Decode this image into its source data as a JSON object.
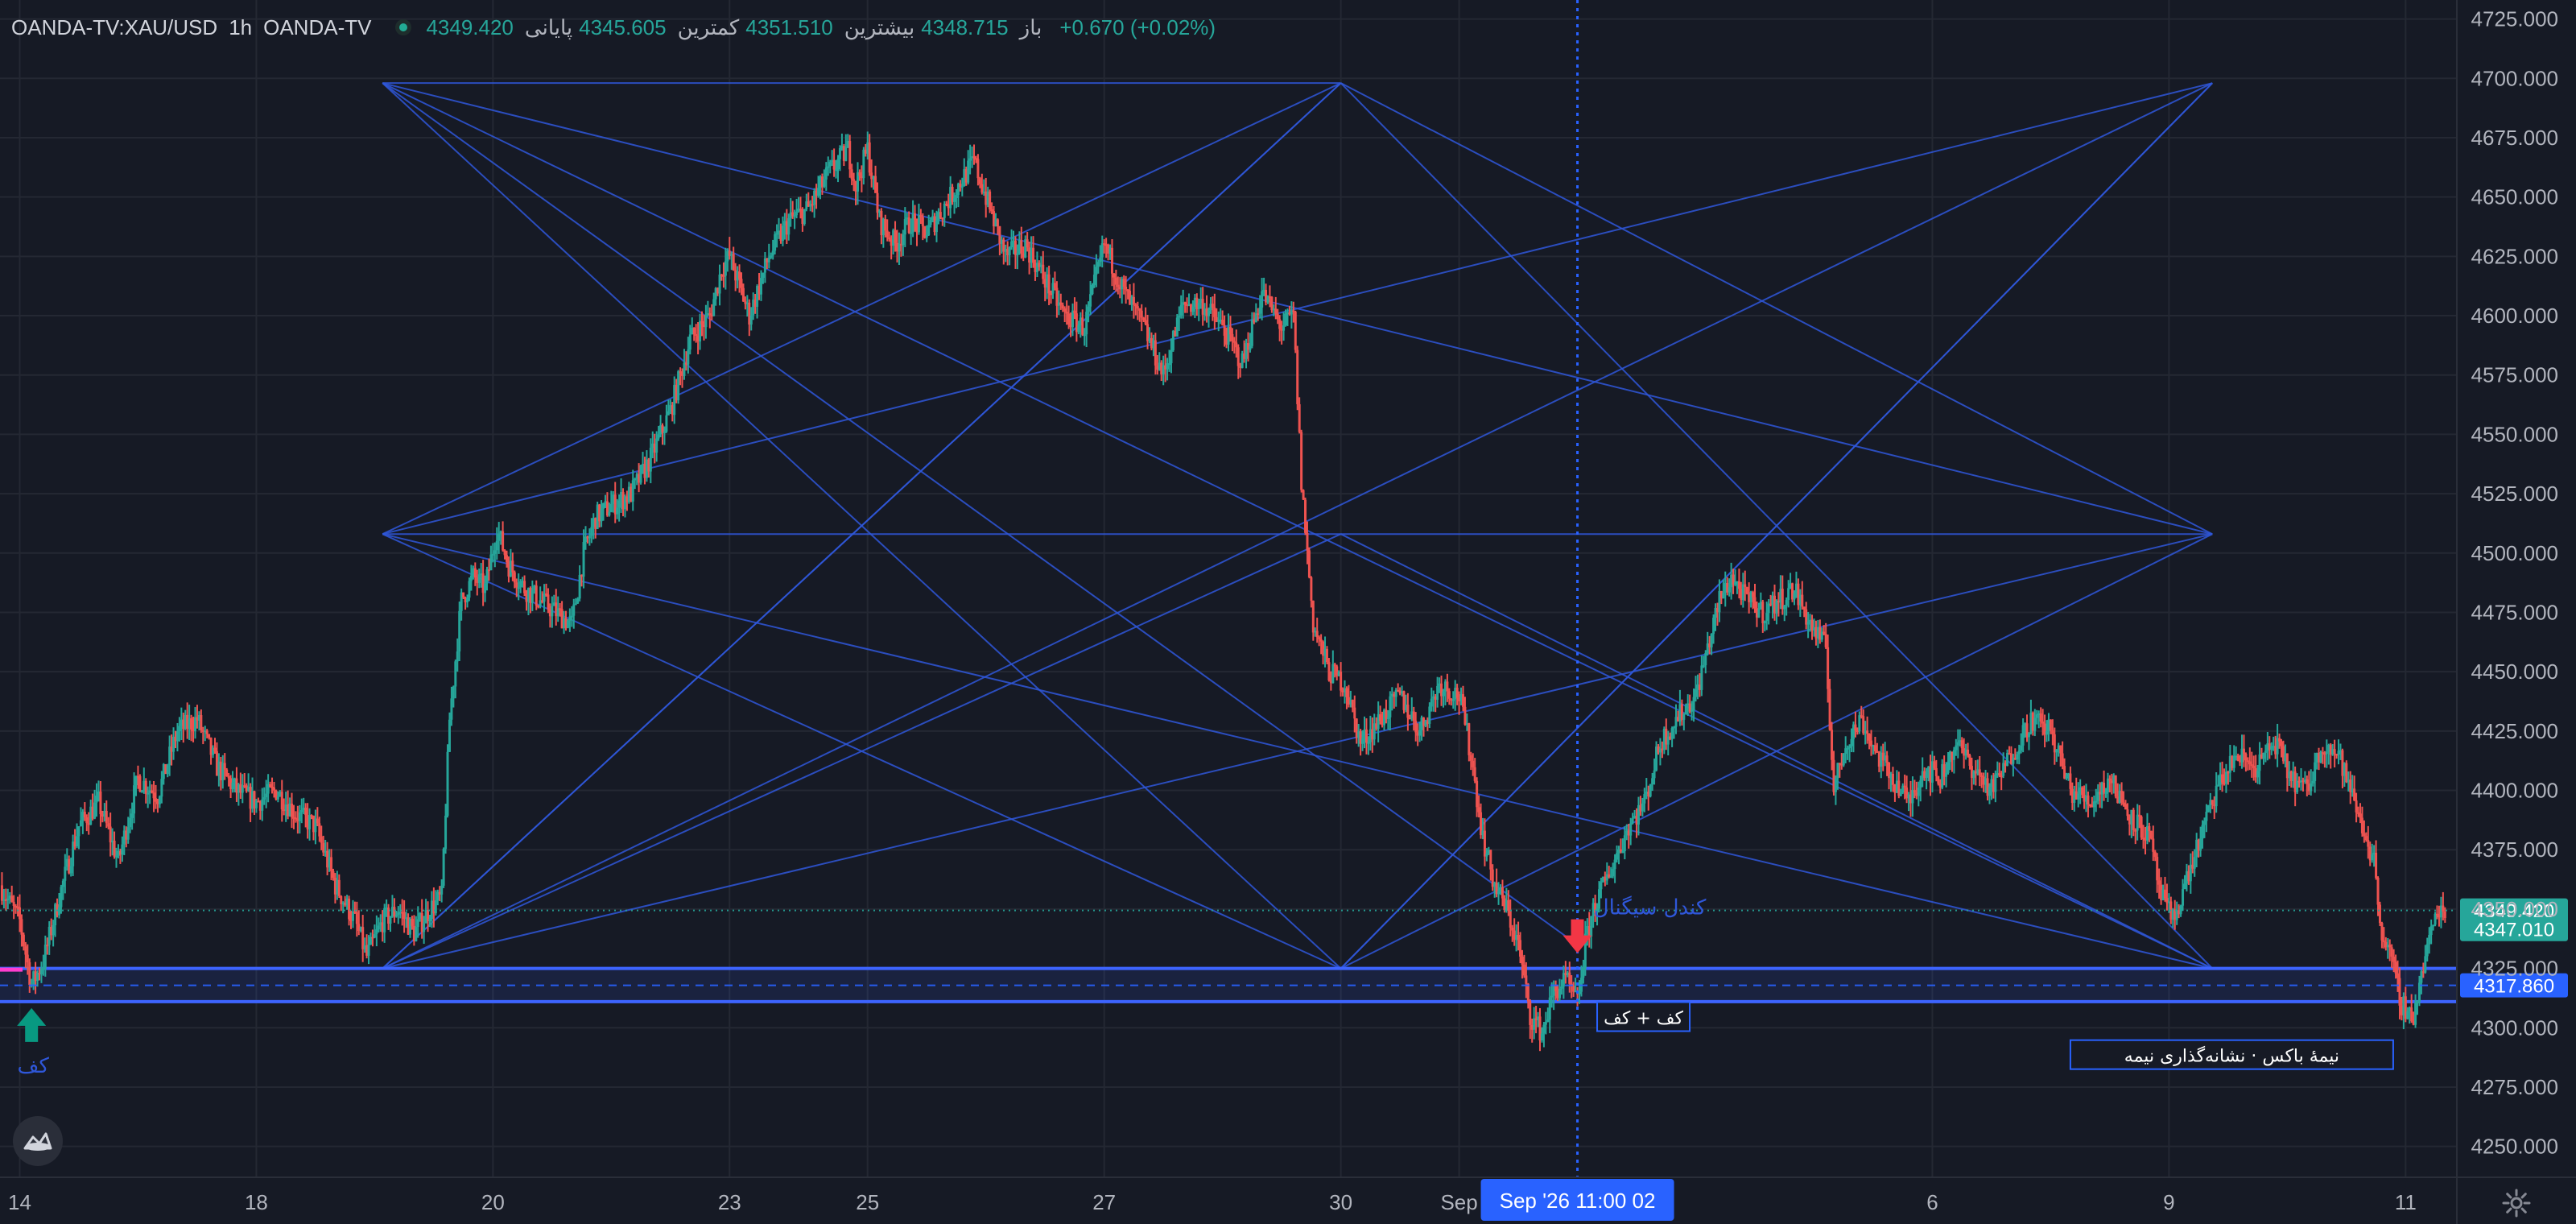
{
  "header": {
    "symbol": "OANDA-TV:XAU/USD",
    "interval": "1h",
    "source": "OANDA-TV",
    "open_label": "باز",
    "open": "4348.715",
    "high_label": "بیشترین",
    "high": "4351.510",
    "low_label": "کمترین",
    "low": "4345.605",
    "close_label": "پایانی",
    "close": "4349.420",
    "change": "+0.670 (+0.02%)"
  },
  "colors": {
    "background": "#161a25",
    "grid": "#242833",
    "up": "#26a69a",
    "down": "#ef5350",
    "pattern_lines": "#2f57d9",
    "zone": "#3d64ff",
    "accent_pink": "#ff3dcf",
    "axis_text": "#b2b5be"
  },
  "chart_data": {
    "type": "candlestick",
    "symbol": "XAU/USD",
    "interval": "1h",
    "ylim": [
      4237,
      4733
    ],
    "y_ticks": [
      4250,
      4275,
      4300,
      4325,
      4350,
      4375,
      4400,
      4425,
      4450,
      4475,
      4500,
      4525,
      4550,
      4575,
      4600,
      4625,
      4650,
      4675,
      4700,
      4725
    ],
    "y_tick_labels": [
      "4250.000",
      "4275.000",
      "4300.000",
      "4325.000",
      "4350.000",
      "4375.000",
      "4400.000",
      "4425.000",
      "4450.000",
      "4475.000",
      "4500.000",
      "4525.000",
      "4550.000",
      "4575.000",
      "4600.000",
      "4625.000",
      "4650.000",
      "4675.000",
      "4700.000",
      "4725.000"
    ],
    "x_ticks": [
      {
        "label": "14",
        "x": 0
      },
      {
        "label": "18",
        "x": 60
      },
      {
        "label": "20",
        "x": 120
      },
      {
        "label": "23",
        "x": 180
      },
      {
        "label": "25",
        "x": 215
      },
      {
        "label": "27",
        "x": 275
      },
      {
        "label": "30",
        "x": 335
      },
      {
        "label": "Sep",
        "x": 365
      },
      {
        "label": "6",
        "x": 485
      },
      {
        "label": "9",
        "x": 545
      },
      {
        "label": "11",
        "x": 605
      }
    ],
    "price_path": [
      [
        -5,
        4360
      ],
      [
        0,
        4345
      ],
      [
        3,
        4318
      ],
      [
        6,
        4328
      ],
      [
        10,
        4355
      ],
      [
        15,
        4385
      ],
      [
        20,
        4395
      ],
      [
        25,
        4370
      ],
      [
        30,
        4405
      ],
      [
        35,
        4398
      ],
      [
        40,
        4425
      ],
      [
        45,
        4430
      ],
      [
        50,
        4410
      ],
      [
        55,
        4400
      ],
      [
        60,
        4395
      ],
      [
        65,
        4400
      ],
      [
        70,
        4390
      ],
      [
        75,
        4385
      ],
      [
        80,
        4360
      ],
      [
        85,
        4345
      ],
      [
        88,
        4330
      ],
      [
        92,
        4345
      ],
      [
        96,
        4350
      ],
      [
        100,
        4340
      ],
      [
        104,
        4350
      ],
      [
        107,
        4355
      ],
      [
        109,
        4430
      ],
      [
        112,
        4480
      ],
      [
        115,
        4490
      ],
      [
        118,
        4485
      ],
      [
        121,
        4510
      ],
      [
        124,
        4495
      ],
      [
        128,
        4485
      ],
      [
        132,
        4480
      ],
      [
        136,
        4475
      ],
      [
        140,
        4470
      ],
      [
        143,
        4500
      ],
      [
        146,
        4515
      ],
      [
        150,
        4520
      ],
      [
        155,
        4525
      ],
      [
        160,
        4540
      ],
      [
        165,
        4560
      ],
      [
        170,
        4590
      ],
      [
        175,
        4600
      ],
      [
        178,
        4620
      ],
      [
        180,
        4625
      ],
      [
        185,
        4600
      ],
      [
        190,
        4625
      ],
      [
        195,
        4640
      ],
      [
        200,
        4645
      ],
      [
        205,
        4660
      ],
      [
        210,
        4670
      ],
      [
        212,
        4655
      ],
      [
        215,
        4670
      ],
      [
        218,
        4640
      ],
      [
        222,
        4630
      ],
      [
        226,
        4640
      ],
      [
        230,
        4635
      ],
      [
        234,
        4645
      ],
      [
        238,
        4655
      ],
      [
        242,
        4665
      ],
      [
        245,
        4650
      ],
      [
        250,
        4625
      ],
      [
        255,
        4630
      ],
      [
        260,
        4615
      ],
      [
        265,
        4600
      ],
      [
        270,
        4595
      ],
      [
        275,
        4630
      ],
      [
        280,
        4610
      ],
      [
        285,
        4595
      ],
      [
        290,
        4575
      ],
      [
        295,
        4605
      ],
      [
        300,
        4605
      ],
      [
        305,
        4595
      ],
      [
        310,
        4580
      ],
      [
        315,
        4610
      ],
      [
        320,
        4595
      ],
      [
        323,
        4600
      ],
      [
        325,
        4530
      ],
      [
        328,
        4470
      ],
      [
        332,
        4450
      ],
      [
        336,
        4445
      ],
      [
        340,
        4420
      ],
      [
        345,
        4430
      ],
      [
        350,
        4440
      ],
      [
        355,
        4425
      ],
      [
        360,
        4445
      ],
      [
        365,
        4440
      ],
      [
        368,
        4415
      ],
      [
        371,
        4380
      ],
      [
        374,
        4360
      ],
      [
        377,
        4350
      ],
      [
        380,
        4335
      ],
      [
        383,
        4305
      ],
      [
        386,
        4298
      ],
      [
        389,
        4315
      ],
      [
        392,
        4320
      ],
      [
        395,
        4310
      ],
      [
        397,
        4335
      ],
      [
        399,
        4350
      ],
      [
        403,
        4365
      ],
      [
        408,
        4385
      ],
      [
        412,
        4395
      ],
      [
        416,
        4420
      ],
      [
        420,
        4430
      ],
      [
        425,
        4440
      ],
      [
        428,
        4460
      ],
      [
        431,
        4480
      ],
      [
        434,
        4490
      ],
      [
        438,
        4480
      ],
      [
        442,
        4475
      ],
      [
        446,
        4480
      ],
      [
        450,
        4485
      ],
      [
        454,
        4470
      ],
      [
        458,
        4460
      ],
      [
        460,
        4400
      ],
      [
        463,
        4420
      ],
      [
        467,
        4430
      ],
      [
        471,
        4415
      ],
      [
        475,
        4405
      ],
      [
        479,
        4395
      ],
      [
        483,
        4410
      ],
      [
        487,
        4405
      ],
      [
        491,
        4420
      ],
      [
        495,
        4410
      ],
      [
        500,
        4400
      ],
      [
        505,
        4415
      ],
      [
        510,
        4430
      ],
      [
        515,
        4425
      ],
      [
        520,
        4400
      ],
      [
        525,
        4395
      ],
      [
        530,
        4405
      ],
      [
        535,
        4390
      ],
      [
        540,
        4380
      ],
      [
        543,
        4355
      ],
      [
        546,
        4345
      ],
      [
        549,
        4360
      ],
      [
        553,
        4380
      ],
      [
        557,
        4400
      ],
      [
        562,
        4415
      ],
      [
        567,
        4410
      ],
      [
        572,
        4420
      ],
      [
        576,
        4405
      ],
      [
        580,
        4400
      ],
      [
        584,
        4420
      ],
      [
        588,
        4415
      ],
      [
        591,
        4400
      ],
      [
        594,
        4385
      ],
      [
        597,
        4370
      ],
      [
        599,
        4340
      ],
      [
        601,
        4330
      ],
      [
        604,
        4310
      ],
      [
        607,
        4305
      ],
      [
        610,
        4330
      ],
      [
        613,
        4350
      ],
      [
        615,
        4349.42
      ]
    ],
    "x_range": [
      -5,
      618
    ],
    "levels": [
      {
        "name": "current",
        "value": 4349.42,
        "label": "4349.420",
        "color": "#26a69a",
        "style": "dotted"
      },
      {
        "name": "marker",
        "value": 4347.01,
        "label": "4347.010",
        "color": "#26a69a"
      },
      {
        "name": "zone-mid",
        "value": 4317.86,
        "label": "4317.860",
        "color": "#2962ff",
        "style": "dashed"
      }
    ],
    "zone": {
      "from": 4311,
      "to": 4325
    },
    "pink_level": 4324.5,
    "pattern_lines": [
      [
        [
          92,
          4698
        ],
        [
          395,
          4335
        ]
      ],
      [
        [
          92,
          4698
        ],
        [
          556,
          4325
        ]
      ],
      [
        [
          92,
          4698
        ],
        [
          335,
          4698
        ]
      ],
      [
        [
          92,
          4508
        ],
        [
          335,
          4698
        ]
      ],
      [
        [
          92,
          4508
        ],
        [
          556,
          4508
        ]
      ],
      [
        [
          92,
          4508
        ],
        [
          556,
          4325
        ]
      ],
      [
        [
          92,
          4325
        ],
        [
          335,
          4698
        ]
      ],
      [
        [
          92,
          4325
        ],
        [
          556,
          4508
        ]
      ],
      [
        [
          335,
          4698
        ],
        [
          556,
          4325
        ]
      ],
      [
        [
          335,
          4698
        ],
        [
          556,
          4508
        ]
      ],
      [
        [
          335,
          4698
        ],
        [
          92,
          4325
        ]
      ],
      [
        [
          335,
          4325
        ],
        [
          556,
          4698
        ]
      ],
      [
        [
          92,
          4325
        ],
        [
          556,
          4698
        ]
      ],
      [
        [
          92,
          4698
        ],
        [
          556,
          4508
        ]
      ],
      [
        [
          335,
          4325
        ],
        [
          92,
          4698
        ]
      ],
      [
        [
          335,
          4325
        ],
        [
          556,
          4508
        ]
      ],
      [
        [
          92,
          4508
        ],
        [
          335,
          4325
        ]
      ],
      [
        [
          556,
          4698
        ],
        [
          335,
          4325
        ]
      ],
      [
        [
          556,
          4698
        ],
        [
          92,
          4508
        ]
      ],
      [
        [
          92,
          4325
        ],
        [
          335,
          4508
        ]
      ],
      [
        [
          335,
          4508
        ],
        [
          556,
          4325
        ]
      ]
    ],
    "crosshair_x": 395,
    "annotations": [
      {
        "name": "buy-arrow",
        "kind": "arrow-up",
        "x": 3,
        "value": 4311,
        "color": "#089981",
        "text": "کف"
      },
      {
        "name": "sell-arrow",
        "kind": "arrow-down",
        "x": 395,
        "value": 4345,
        "color": "#f23645",
        "text": "کندل سیگنال"
      },
      {
        "name": "floor-box",
        "kind": "box",
        "x": 400,
        "value": 4304,
        "text": "کف + کف"
      },
      {
        "name": "note-box",
        "kind": "box",
        "x": 520,
        "value": 4288,
        "text": "نیمهٔ باکس · نشانه‌گذاری نیمه"
      }
    ],
    "crosshair_label": "Sep '26   11:00 02"
  }
}
